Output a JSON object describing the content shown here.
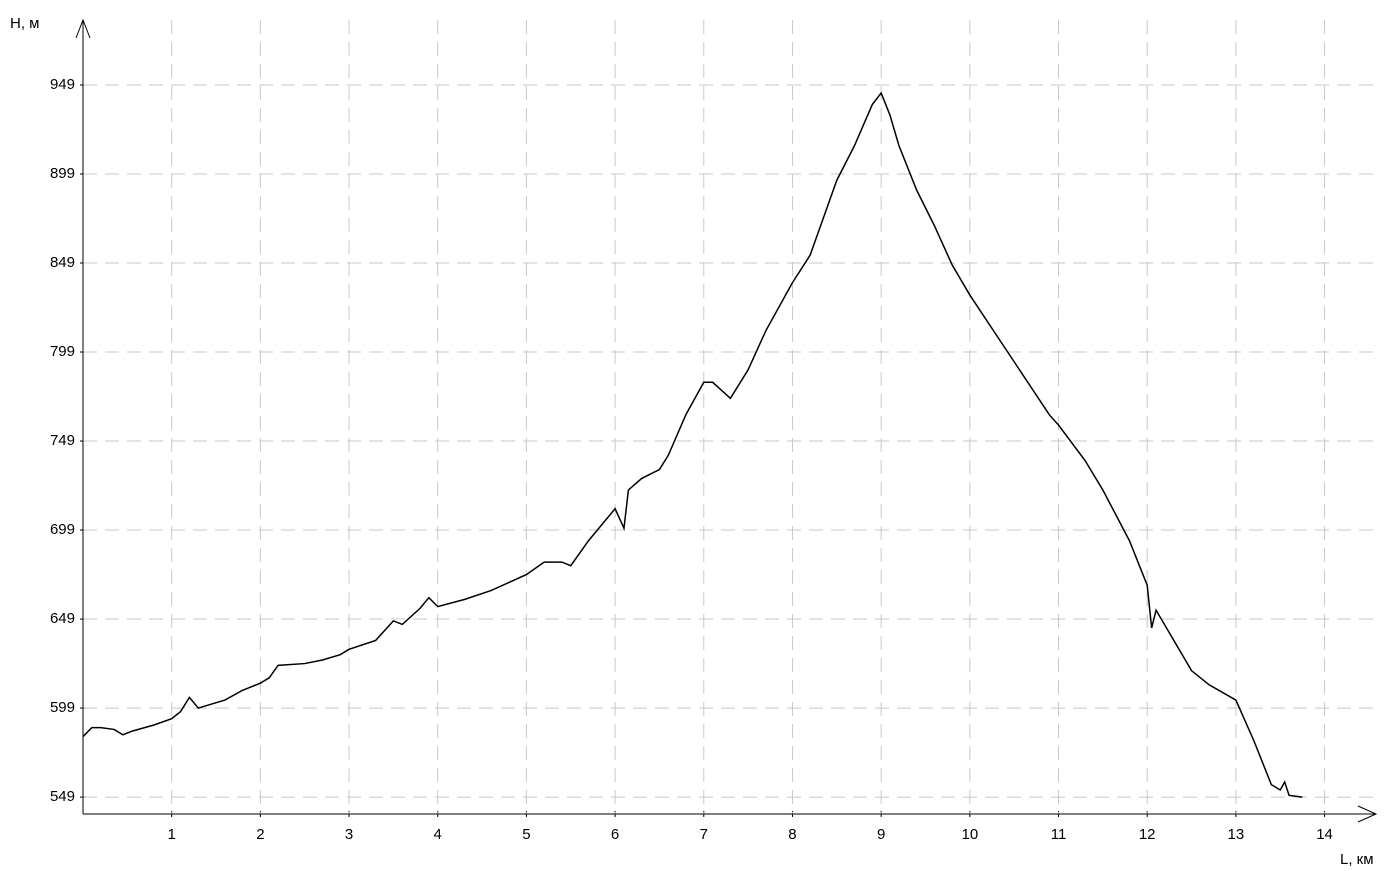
{
  "chart_data": {
    "type": "line",
    "y_label": "Н, м",
    "x_label": "L, км",
    "xlim": [
      0,
      14.58
    ],
    "ylim": [
      539.5,
      985.5
    ],
    "xticks": [
      1,
      2,
      3,
      4,
      5,
      6,
      7,
      8,
      9,
      10,
      11,
      12,
      13,
      14
    ],
    "yticks": [
      549,
      599,
      649,
      699,
      749,
      799,
      849,
      899,
      949
    ],
    "grid": true,
    "series": [
      {
        "color": "#000000",
        "x": [
          0,
          0.1,
          0.2,
          0.35,
          0.45,
          0.55,
          0.8,
          1.0,
          1.1,
          1.2,
          1.3,
          1.6,
          1.8,
          2.0,
          2.1,
          2.2,
          2.5,
          2.7,
          2.9,
          3.0,
          3.3,
          3.5,
          3.6,
          3.8,
          3.9,
          4.0,
          4.3,
          4.6,
          5.0,
          5.2,
          5.4,
          5.5,
          5.7,
          6.0,
          6.1,
          6.15,
          6.3,
          6.5,
          6.6,
          6.8,
          7.0,
          7.1,
          7.2,
          7.3,
          7.5,
          7.7,
          8.0,
          8.2,
          8.4,
          8.5,
          8.7,
          8.9,
          9.0,
          9.1,
          9.2,
          9.4,
          9.6,
          9.8,
          10.0,
          10.3,
          10.6,
          10.9,
          11.0,
          11.3,
          11.5,
          11.8,
          12.0,
          12.05,
          12.1,
          12.3,
          12.5,
          12.7,
          13.0,
          13.2,
          13.4,
          13.5,
          13.55,
          13.6,
          13.75
        ],
        "values": [
          583,
          588,
          588,
          587,
          584,
          586,
          589.5,
          593,
          597,
          605,
          599,
          603.5,
          609,
          613,
          616,
          623,
          624,
          626,
          629,
          632,
          637,
          648,
          646,
          655,
          661,
          656,
          660,
          665,
          674,
          681,
          681,
          679,
          693,
          711,
          700,
          721.5,
          728,
          733,
          741,
          764,
          782,
          782,
          777.5,
          773,
          789,
          811,
          838,
          853.5,
          881.5,
          895.5,
          915,
          938,
          944.5,
          932,
          915,
          890,
          870,
          848,
          831,
          808.5,
          786,
          763.5,
          758,
          738,
          721.5,
          693,
          668,
          644,
          654,
          637,
          620,
          612,
          603.5,
          581,
          556,
          553,
          557.5,
          550,
          549
        ]
      }
    ]
  }
}
